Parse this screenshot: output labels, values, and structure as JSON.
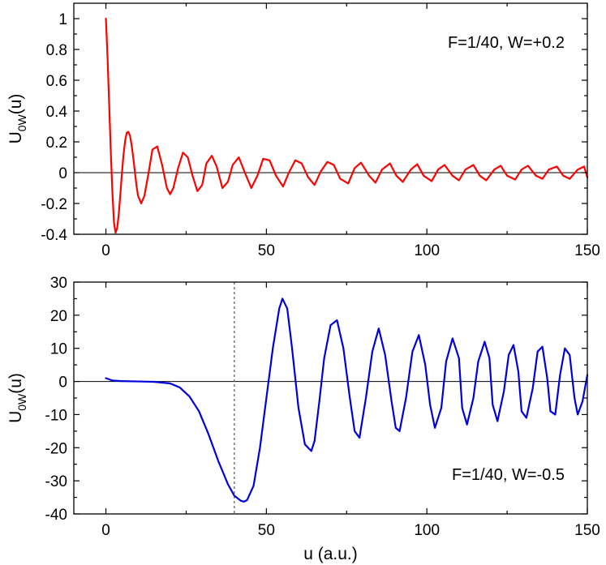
{
  "chart_data": [
    {
      "type": "line",
      "title": "",
      "xlabel": "",
      "ylabel": "U",
      "ylabel_sub": "0W",
      "ylabel_tail": "(u)",
      "annotation": "F=1/40, W=+0.2",
      "annotation_position": "top-right",
      "xlim": [
        -10,
        150
      ],
      "ylim": [
        -0.4,
        1.1
      ],
      "xticks": [
        0,
        50,
        100,
        150
      ],
      "xtick_labels": [
        "0",
        "50",
        "100",
        "150"
      ],
      "yticks": [
        -0.4,
        -0.2,
        0,
        0.2,
        0.4,
        0.6,
        0.8,
        1
      ],
      "ytick_labels": [
        "-0.4",
        "-0.2",
        "0",
        "0.2",
        "0.4",
        "0.6",
        "0.8",
        "1"
      ],
      "grid": false,
      "zero_line": true,
      "series": [
        {
          "color": "#ff0000",
          "x": [
            0,
            0.5,
            1,
            1.5,
            2,
            2.5,
            3,
            3.5,
            4,
            4.5,
            5,
            5.5,
            6,
            6.5,
            7,
            7.5,
            8,
            8.5,
            9,
            9.5,
            10,
            11,
            12,
            13.3,
            14.5,
            16,
            17.5,
            19,
            20,
            21,
            22.5,
            24,
            25.5,
            27,
            28.5,
            30,
            31.3,
            33,
            34.5,
            36.3,
            38,
            39.5,
            41.4,
            43.3,
            45.3,
            47.2,
            49,
            51,
            53,
            55.2,
            57,
            59,
            61,
            63,
            65,
            67,
            69,
            71,
            73,
            75.5,
            77.5,
            79.5,
            82,
            84,
            86,
            88.5,
            90.5,
            92.5,
            95,
            97,
            99,
            101.5,
            103.5,
            105.5,
            108,
            110,
            112,
            114.5,
            116.5,
            118.5,
            121,
            123,
            125,
            127.5,
            129.5,
            131.5,
            134,
            136,
            138,
            140.5,
            142.5,
            144.5,
            147,
            149,
            150
          ],
          "y": [
            1.0,
            0.75,
            0.45,
            0.15,
            -0.12,
            -0.32,
            -0.39,
            -0.36,
            -0.27,
            -0.14,
            0.0,
            0.12,
            0.21,
            0.26,
            0.265,
            0.24,
            0.18,
            0.1,
            0.01,
            -0.08,
            -0.15,
            -0.2,
            -0.15,
            0.0,
            0.15,
            0.17,
            0.05,
            -0.1,
            -0.14,
            -0.1,
            0.03,
            0.13,
            0.1,
            -0.02,
            -0.12,
            -0.08,
            0.06,
            0.11,
            0.04,
            -0.1,
            -0.06,
            0.05,
            0.1,
            0.0,
            -0.1,
            -0.02,
            0.09,
            0.08,
            -0.02,
            -0.09,
            0.0,
            0.08,
            0.06,
            -0.03,
            -0.08,
            0.01,
            0.07,
            0.05,
            -0.04,
            -0.07,
            0.03,
            0.065,
            -0.02,
            -0.065,
            0.02,
            0.06,
            -0.02,
            -0.06,
            0.02,
            0.055,
            -0.02,
            -0.055,
            0.02,
            0.05,
            -0.02,
            -0.05,
            0.02,
            0.05,
            -0.02,
            -0.05,
            0.02,
            0.045,
            -0.02,
            -0.045,
            0.02,
            0.045,
            -0.02,
            -0.04,
            0.02,
            0.04,
            -0.02,
            -0.04,
            0.02,
            0.04,
            -0.03
          ]
        }
      ]
    },
    {
      "type": "line",
      "title": "",
      "xlabel": "u (a.u.)",
      "ylabel": "U",
      "ylabel_sub": "0W",
      "ylabel_tail": "(u)",
      "annotation": "F=1/40, W=-0.5",
      "annotation_position": "bottom-right",
      "xlim": [
        -10,
        150
      ],
      "ylim": [
        -40,
        30
      ],
      "xticks": [
        0,
        50,
        100,
        150
      ],
      "xtick_labels": [
        "0",
        "50",
        "100",
        "150"
      ],
      "yticks": [
        -40,
        -30,
        -20,
        -10,
        0,
        10,
        20,
        30
      ],
      "ytick_labels": [
        "-40",
        "-30",
        "-20",
        "-10",
        "0",
        "10",
        "20",
        "30"
      ],
      "grid": false,
      "zero_line": true,
      "vline_x": 40,
      "series": [
        {
          "color": "#0000dd",
          "x": [
            0,
            2,
            5,
            10,
            15,
            20,
            23,
            26,
            29,
            32,
            35,
            38,
            40,
            42,
            43,
            44,
            46,
            48,
            50,
            52,
            54,
            55,
            56.5,
            58,
            60,
            62,
            64,
            65,
            66.5,
            68,
            70,
            72,
            74,
            76,
            77.5,
            79,
            81,
            83,
            85,
            87,
            89,
            90.3,
            91.5,
            93.5,
            95.5,
            97.5,
            99.5,
            101,
            102.5,
            104.5,
            106,
            108,
            110,
            111,
            112.5,
            114.5,
            116,
            118,
            119.5,
            120.5,
            122,
            124,
            125.5,
            127,
            128.5,
            129.5,
            131,
            133,
            134.5,
            136,
            137.5,
            138.5,
            140,
            141.5,
            143,
            144.5,
            146,
            147,
            148.5,
            150
          ],
          "y": [
            1,
            0.3,
            0.1,
            0,
            -0.1,
            -0.6,
            -1.8,
            -4.5,
            -9,
            -16,
            -24,
            -31,
            -34.5,
            -36,
            -36.3,
            -35.8,
            -31.5,
            -20,
            -5,
            10,
            22,
            25,
            22,
            10,
            -8,
            -19,
            -21,
            -18,
            -6,
            7,
            17,
            18.5,
            10,
            -5,
            -15,
            -17,
            -5,
            9,
            16,
            8,
            -6,
            -14,
            -15,
            -5,
            9,
            14,
            5,
            -7,
            -14,
            -8,
            6,
            13,
            7,
            -8,
            -13,
            -5,
            6,
            12,
            7,
            -7,
            -12,
            -3,
            8,
            11,
            3,
            -9,
            -11,
            -2,
            9,
            10.5,
            1,
            -9,
            -10,
            2,
            10,
            8,
            -5,
            -10,
            -6,
            2
          ]
        }
      ]
    }
  ]
}
